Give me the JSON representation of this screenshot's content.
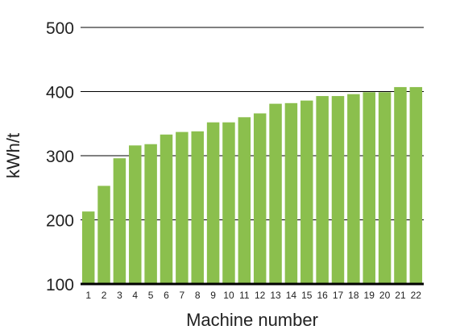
{
  "chart_data": {
    "type": "bar",
    "title": "",
    "xlabel": "Machine number",
    "ylabel": "kWh/t",
    "ylim": [
      100,
      500
    ],
    "yticks": [
      100,
      200,
      300,
      400,
      500
    ],
    "grid": true,
    "categories": [
      "1",
      "2",
      "3",
      "4",
      "5",
      "6",
      "7",
      "8",
      "9",
      "10",
      "11",
      "12",
      "13",
      "14",
      "15",
      "16",
      "17",
      "18",
      "19",
      "20",
      "21",
      "22"
    ],
    "values": [
      213,
      253,
      296,
      316,
      318,
      333,
      337,
      338,
      352,
      352,
      360,
      366,
      381,
      382,
      386,
      393,
      393,
      396,
      399,
      399,
      407,
      407
    ],
    "colors": {
      "bar": "#8bbf4d",
      "grid": "#000000",
      "baseline": "#000000",
      "text": "#222222"
    }
  }
}
